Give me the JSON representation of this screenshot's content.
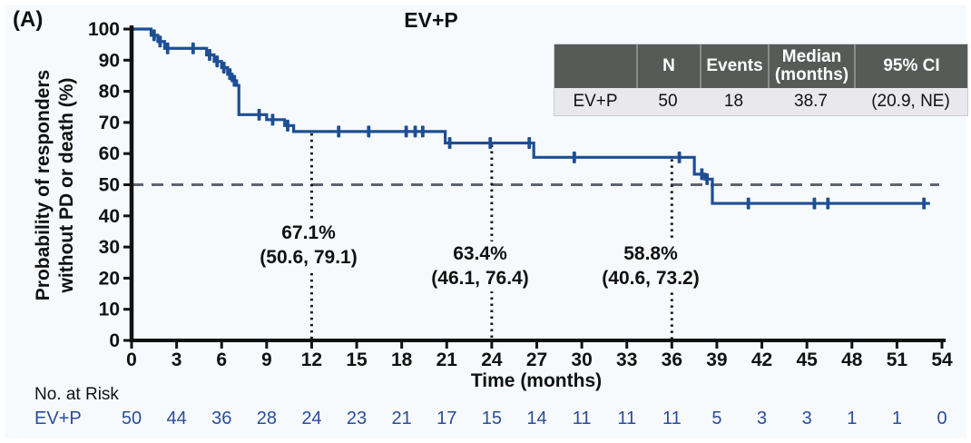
{
  "chart_data": {
    "type": "line",
    "subtype": "kaplan-meier-step",
    "panel_label": "(A)",
    "title": "EV+P",
    "xlabel": "Time (months)",
    "ylabel": "Probability of responders\nwithout PD or death (%)",
    "xlim": [
      0,
      54
    ],
    "ylim": [
      0,
      100
    ],
    "xticks": [
      0,
      3,
      6,
      9,
      12,
      15,
      18,
      21,
      24,
      27,
      30,
      33,
      36,
      39,
      42,
      45,
      48,
      51,
      54
    ],
    "yticks": [
      0,
      10,
      20,
      30,
      40,
      50,
      60,
      70,
      80,
      90,
      100
    ],
    "grid": "off",
    "reference_line_y": 50,
    "colors": {
      "curve": "#1d4e95",
      "risk_text": "#2b4c9c",
      "reference_dash": "#5d6470",
      "milestone_dots": "#1a1a1a",
      "axis": "#111111",
      "table_header_bg": "#565b58",
      "table_row_bg": "#e9e9ed",
      "background": "#f7fafc"
    },
    "series": [
      {
        "name": "EV+P",
        "start": [
          0.1,
          100
        ],
        "steps": [
          [
            1.3,
            98.0
          ],
          [
            1.75,
            96.0
          ],
          [
            2.2,
            93.8
          ],
          [
            5.0,
            91.7
          ],
          [
            5.5,
            89.6
          ],
          [
            6.0,
            87.6
          ],
          [
            6.4,
            85.5
          ],
          [
            6.7,
            83.4
          ],
          [
            7.0,
            81.9
          ],
          [
            7.15,
            72.5
          ],
          [
            9.0,
            70.9
          ],
          [
            10.2,
            69.0
          ],
          [
            10.8,
            67.1
          ],
          [
            20.9,
            63.4
          ],
          [
            26.8,
            58.8
          ],
          [
            37.5,
            53.4
          ],
          [
            38.2,
            51.8
          ],
          [
            38.7,
            44.0
          ]
        ],
        "end_month": 53.2,
        "censors": [
          [
            1.5,
            98.0
          ],
          [
            1.9,
            96.0
          ],
          [
            2.4,
            93.8
          ],
          [
            4.1,
            93.8
          ],
          [
            5.2,
            91.7
          ],
          [
            5.7,
            89.6
          ],
          [
            6.15,
            87.6
          ],
          [
            6.55,
            85.5
          ],
          [
            6.85,
            83.4
          ],
          [
            8.5,
            72.5
          ],
          [
            9.4,
            70.9
          ],
          [
            10.4,
            69.0
          ],
          [
            13.8,
            67.1
          ],
          [
            15.8,
            67.1
          ],
          [
            18.3,
            67.1
          ],
          [
            18.9,
            67.1
          ],
          [
            19.4,
            67.1
          ],
          [
            21.2,
            63.4
          ],
          [
            23.9,
            63.4
          ],
          [
            26.5,
            63.4
          ],
          [
            29.5,
            58.8
          ],
          [
            36.5,
            58.8
          ],
          [
            38.0,
            53.4
          ],
          [
            38.35,
            51.8
          ],
          [
            41.1,
            44.0
          ],
          [
            45.5,
            44.0
          ],
          [
            46.4,
            44.0
          ],
          [
            52.8,
            44.0
          ]
        ]
      }
    ],
    "milestones": [
      {
        "month": 12,
        "pct": "67.1%",
        "ci": "(50.6, 79.1)"
      },
      {
        "month": 24,
        "pct": "63.4%",
        "ci": "(46.1, 76.4)"
      },
      {
        "month": 36,
        "pct": "58.8%",
        "ci": "(40.6, 73.2)"
      }
    ],
    "summary_table": {
      "headers": [
        "",
        "N",
        "Events",
        "Median\n(months)",
        "95% CI"
      ],
      "rows": [
        {
          "label": "EV+P",
          "n": "50",
          "events": "18",
          "median": "38.7",
          "ci": "(20.9, NE)"
        }
      ]
    },
    "risk_table": {
      "title": "No. at Risk",
      "row_label": "EV+P",
      "times": [
        0,
        3,
        6,
        9,
        12,
        15,
        18,
        21,
        24,
        27,
        30,
        33,
        36,
        39,
        42,
        45,
        48,
        51,
        54
      ],
      "counts": [
        50,
        44,
        36,
        28,
        24,
        23,
        21,
        17,
        15,
        14,
        11,
        11,
        11,
        5,
        3,
        3,
        1,
        1,
        0
      ]
    }
  }
}
